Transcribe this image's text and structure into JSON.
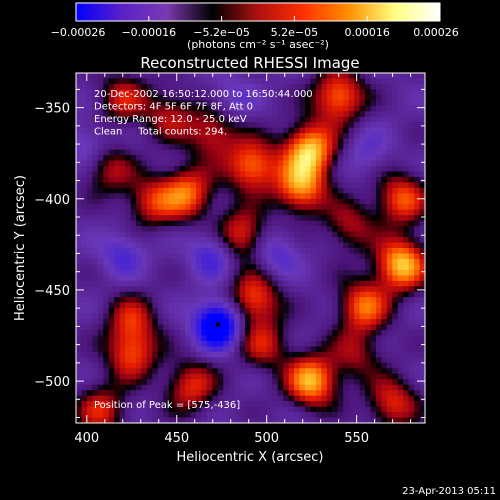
{
  "chart_data": {
    "type": "heatmap",
    "title": "Reconstructed RHESSI Image",
    "xlabel": "Heliocentric X (arcsec)",
    "ylabel": "Heliocentric Y (arcsec)",
    "xlim": [
      394,
      588
    ],
    "ylim": [
      -523,
      -331
    ],
    "x_ticks": [
      400,
      450,
      500,
      550
    ],
    "x_tick_labels": [
      "400",
      "450",
      "500",
      "550"
    ],
    "y_ticks": [
      -500,
      -450,
      -400,
      -350
    ],
    "y_tick_labels": [
      "−500",
      "−450",
      "−400",
      "−350"
    ],
    "colorbar": {
      "range": [
        -0.00026,
        0.00026
      ],
      "tick_labels": [
        "−0.00026",
        "−0.00016",
        "−5.2e−05",
        "5.2e−05",
        "0.00016",
        "0.00026"
      ],
      "unit_label": "(photons cm⁻² s⁻¹ asec⁻²)",
      "colormap": [
        "#0000ff",
        "#5a1fc8",
        "#7a3ab0",
        "#000000",
        "#b01010",
        "#ff3000",
        "#ff9000",
        "#ffff80",
        "#ffffff"
      ]
    },
    "annotations": [
      "20-Dec-2002 16:50:12.000 to 16:50:44.000",
      "Detectors: 4F 5F 6F 7F 8F, Att 0",
      "Energy Range: 12.0 - 25.0 keV",
      "Clean     Total counts: 294."
    ],
    "peak_label": "Position of Peak = [575,-436]",
    "peak_position": [
      575,
      -436
    ],
    "min_marker": [
      473,
      -469
    ],
    "hotspots": [
      {
        "x": 524,
        "y": -373,
        "v": 1.0
      },
      {
        "x": 540,
        "y": -344,
        "v": 0.8
      },
      {
        "x": 519,
        "y": -394,
        "v": 0.85
      },
      {
        "x": 575,
        "y": -436,
        "v": 1.0
      },
      {
        "x": 575,
        "y": -400,
        "v": 0.7
      },
      {
        "x": 554,
        "y": -459,
        "v": 0.75
      },
      {
        "x": 525,
        "y": -500,
        "v": 0.95
      },
      {
        "x": 492,
        "y": -382,
        "v": 0.8
      },
      {
        "x": 486,
        "y": -420,
        "v": 0.65
      },
      {
        "x": 470,
        "y": -364,
        "v": 0.55
      },
      {
        "x": 456,
        "y": -397,
        "v": 0.75
      },
      {
        "x": 436,
        "y": -402,
        "v": 0.55
      },
      {
        "x": 412,
        "y": -384,
        "v": 0.45
      },
      {
        "x": 420,
        "y": -345,
        "v": 0.5
      },
      {
        "x": 446,
        "y": -354,
        "v": 0.45
      },
      {
        "x": 493,
        "y": -455,
        "v": 0.7
      },
      {
        "x": 498,
        "y": -480,
        "v": 0.5
      },
      {
        "x": 458,
        "y": -503,
        "v": 0.6
      },
      {
        "x": 425,
        "y": -485,
        "v": 0.65
      },
      {
        "x": 408,
        "y": -516,
        "v": 0.55
      },
      {
        "x": 570,
        "y": -512,
        "v": 0.6
      },
      {
        "x": 425,
        "y": -466,
        "v": 0.5
      },
      {
        "x": 550,
        "y": -485,
        "v": 0.4
      },
      {
        "x": 546,
        "y": -415,
        "v": 0.45
      },
      {
        "x": 473,
        "y": -469,
        "v": -1.0
      },
      {
        "x": 505,
        "y": -430,
        "v": -0.35
      },
      {
        "x": 420,
        "y": -430,
        "v": -0.35
      },
      {
        "x": 470,
        "y": -430,
        "v": -0.45
      },
      {
        "x": 400,
        "y": -370,
        "v": -0.3
      },
      {
        "x": 556,
        "y": -375,
        "v": -0.25
      },
      {
        "x": 480,
        "y": -345,
        "v": -0.25
      }
    ]
  },
  "footer": {
    "timestamp": "23-Apr-2013 05:11"
  }
}
